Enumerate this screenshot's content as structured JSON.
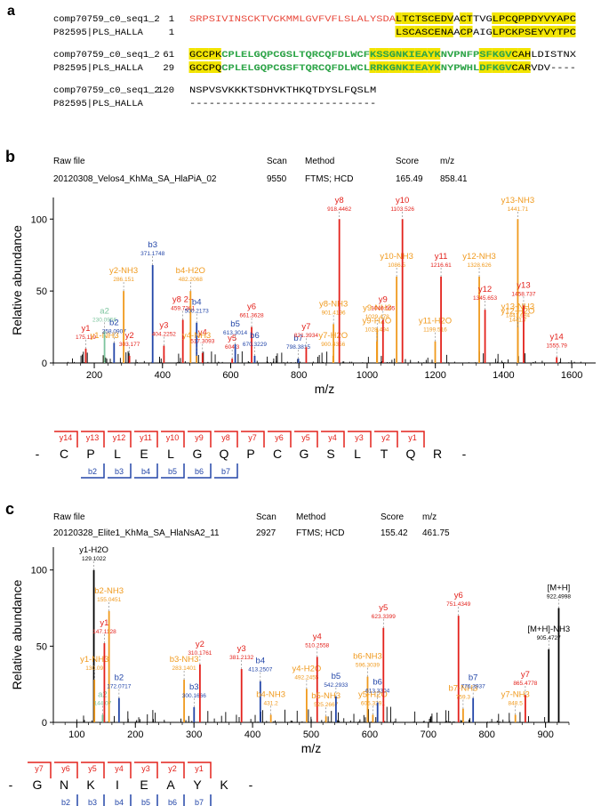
{
  "colors": {
    "red": "#e3221c",
    "orange": "#f09a1e",
    "blue": "#2346a8",
    "green": "#7cc49e",
    "black": "#000000",
    "yellow": "#f2e400",
    "bgreen": "#2fa84a",
    "seqred": "#e8493c"
  },
  "panel_a": {
    "label": "a",
    "rows": [
      {
        "name": "comp70759_c0_seq1_2",
        "start": "1",
        "segs": [
          {
            "t": "SRPSIVINSCKTVCKMMLGVFVFLSLALYSDA",
            "c": "seqred",
            "hl": false
          },
          {
            "t": "LTCTSCEDVACTTVGLPCQPPDYVYAPC",
            "c": "black",
            "hl": "mix"
          }
        ]
      },
      {
        "name": "P82595|PLS_HALLA",
        "start": "1",
        "segs": [
          {
            "t": "                                ",
            "c": "black",
            "hl": false
          },
          {
            "t": "LSCASCENAACPAIGLPCKPSEYVYTPC",
            "c": "black",
            "hl": "mix"
          }
        ]
      },
      {
        "name": "comp70759_c0_seq1_2",
        "start": "61",
        "segs": [
          {
            "t": "GCCPKCPLELGQPCGSLTQRCQFDLWCFKSSGNKIEAYKNVPNFPSFKGVCAHLDISTNX",
            "c": "black",
            "hl": "mix"
          }
        ]
      },
      {
        "name": "P82595|PLS_HALLA",
        "start": "29",
        "segs": [
          {
            "t": "GCCPQCPLELGQPCGSFTQRCQFDLWCLRRKGNKIEAYKNYPWHLDFKGVCARVDV----",
            "c": "black",
            "hl": "mix"
          }
        ]
      },
      {
        "name": "comp70759_c0_seq1_2",
        "start": "120",
        "segs": [
          {
            "t": "NSPVSVKKKTSDHVKTHKQTDYSLFQSLM",
            "c": "black",
            "hl": false
          }
        ]
      },
      {
        "name": "P82595|PLS_HALLA",
        "start": "",
        "segs": [
          {
            "t": "-----------------------------",
            "c": "black",
            "hl": false
          }
        ]
      }
    ]
  },
  "panel_b": {
    "label": "b",
    "header_labels": {
      "raw": "Raw file",
      "scan": "Scan",
      "method": "Method",
      "score": "Score",
      "mz": "m/z"
    },
    "header_values": {
      "raw": "20120308_Velos4_KhMa_SA_HlaPiA_02",
      "scan": "9550",
      "method": "FTMS; HCD",
      "score": "165.49",
      "mz": "858.41"
    },
    "sequence": [
      "C",
      "P",
      "L",
      "E",
      "L",
      "G",
      "Q",
      "P",
      "C",
      "G",
      "S",
      "L",
      "T",
      "Q",
      "R"
    ],
    "y_ions": [
      "y14",
      "y13",
      "y12",
      "y11",
      "y10",
      "y9",
      "y8",
      "y7",
      "y6",
      "y5",
      "y4",
      "y3",
      "y2",
      "y1"
    ],
    "b_ions": [
      "b2",
      "b3",
      "b4",
      "b5",
      "b6",
      "b7"
    ]
  },
  "panel_c": {
    "label": "c",
    "header_labels": {
      "raw": "Raw file",
      "scan": "Scan",
      "method": "Method",
      "score": "Score",
      "mz": "m/z"
    },
    "header_values": {
      "raw": "20120328_Elite1_KhMa_SA_HlaNsA2_11",
      "scan": "2927",
      "method": "FTMS; HCD",
      "score": "155.42",
      "mz": "461.75"
    },
    "sequence": [
      "G",
      "N",
      "K",
      "I",
      "E",
      "A",
      "Y",
      "K"
    ],
    "y_ions": [
      "y7",
      "y6",
      "y5",
      "y4",
      "y3",
      "y2",
      "y1"
    ],
    "b_ions": [
      "b2",
      "b3",
      "b4",
      "b5",
      "b6",
      "b7"
    ]
  },
  "chart_data": [
    {
      "type": "bar",
      "title": "",
      "xlabel": "m/z",
      "ylabel": "Relative abundance",
      "xlim": [
        80,
        1670
      ],
      "ylim": [
        0,
        115
      ],
      "xticks": [
        200,
        400,
        600,
        800,
        1000,
        1200,
        1400,
        1600
      ],
      "yticks": [
        0,
        50,
        100
      ],
      "peaks": [
        {
          "mz": 175.119,
          "int": 10,
          "ion": "y1",
          "val": "175.119",
          "c": "red"
        },
        {
          "mz": 230.0,
          "int": 5,
          "ion": "y1-NH3",
          "val": "",
          "c": "orange"
        },
        {
          "mz": 230.0956,
          "int": 22,
          "ion": "a2",
          "val": "230.0956",
          "c": "green"
        },
        {
          "mz": 258.0907,
          "int": 14,
          "ion": "b2",
          "val": "258.0907",
          "c": "blue"
        },
        {
          "mz": 286.151,
          "int": 50,
          "ion": "y2-NH3",
          "val": "286.151",
          "c": "orange"
        },
        {
          "mz": 303.177,
          "int": 5,
          "ion": "y2",
          "val": "303.177",
          "c": "red"
        },
        {
          "mz": 371.1748,
          "int": 68,
          "ion": "b3",
          "val": "371.1748",
          "c": "blue"
        },
        {
          "mz": 404.2252,
          "int": 12,
          "ion": "y3",
          "val": "404.2252",
          "c": "red"
        },
        {
          "mz": 459.7361,
          "int": 30,
          "ion": "y8 2+",
          "val": "459.7361",
          "c": "red"
        },
        {
          "mz": 482.2068,
          "int": 50,
          "ion": "b4-H2O",
          "val": "482.2068",
          "c": "orange"
        },
        {
          "mz": 500.2173,
          "int": 28,
          "ion": "b4",
          "val": "500.2173",
          "c": "blue"
        },
        {
          "mz": 517.3093,
          "int": 7,
          "ion": "y4",
          "val": "517.3093",
          "c": "red"
        },
        {
          "mz": 500.0,
          "int": 5,
          "ion": "y4-NH3",
          "val": "",
          "c": "orange"
        },
        {
          "mz": 604.3,
          "int": 3,
          "ion": "y5",
          "val": "604.3",
          "c": "red"
        },
        {
          "mz": 613.3014,
          "int": 13,
          "ion": "b5",
          "val": "613.3014",
          "c": "blue"
        },
        {
          "mz": 661.3628,
          "int": 25,
          "ion": "y6",
          "val": "661.3628",
          "c": "red"
        },
        {
          "mz": 670.3229,
          "int": 5,
          "ion": "b6",
          "val": "670.3229",
          "c": "blue"
        },
        {
          "mz": 798.3815,
          "int": 3,
          "ion": "b7",
          "val": "798.3815",
          "c": "blue"
        },
        {
          "mz": 821.3934,
          "int": 11,
          "ion": "y7",
          "val": "821.3934",
          "c": "red"
        },
        {
          "mz": 900.4356,
          "int": 5,
          "ion": "y7-H2O",
          "val": "900.4356",
          "c": "orange"
        },
        {
          "mz": 901.4196,
          "int": 27,
          "ion": "y8-NH3",
          "val": "901.4196",
          "c": "orange"
        },
        {
          "mz": 918.4462,
          "int": 100,
          "ion": "y8",
          "val": "918.4462",
          "c": "red"
        },
        {
          "mz": 1029.478,
          "int": 24,
          "ion": "y9-NH3",
          "val": "1029.478",
          "c": "orange"
        },
        {
          "mz": 1028.494,
          "int": 15,
          "ion": "y9-H2O",
          "val": "1028.494",
          "c": "orange"
        },
        {
          "mz": 1046.505,
          "int": 30,
          "ion": "y9",
          "val": "1046.505",
          "c": "red"
        },
        {
          "mz": 1086.5,
          "int": 60,
          "ion": "y10-NH3",
          "val": "1086.5",
          "c": "orange"
        },
        {
          "mz": 1103.526,
          "int": 100,
          "ion": "y10",
          "val": "1103.526",
          "c": "red"
        },
        {
          "mz": 1199.516,
          "int": 15,
          "ion": "y11-H2O",
          "val": "1199.516",
          "c": "orange"
        },
        {
          "mz": 1216.61,
          "int": 60,
          "ion": "y11",
          "val": "1216.61",
          "c": "red"
        },
        {
          "mz": 1328.626,
          "int": 60,
          "ion": "y12-NH3",
          "val": "1328.626",
          "c": "orange"
        },
        {
          "mz": 1345.653,
          "int": 37,
          "ion": "y12",
          "val": "1345.653",
          "c": "red"
        },
        {
          "mz": 1441.71,
          "int": 100,
          "ion": "y13-NH3",
          "val": "1441.71",
          "c": "orange"
        },
        {
          "mz": 1441.7,
          "int": 22,
          "ion": "y12-H2O",
          "val": "1441.7",
          "c": "orange"
        },
        {
          "mz": 1441.684,
          "int": 25,
          "ion": "y13-NH3",
          "val": "1441.684",
          "c": "orange"
        },
        {
          "mz": 1458.737,
          "int": 40,
          "ion": "y13",
          "val": "1458.737",
          "c": "red"
        },
        {
          "mz": 1555.79,
          "int": 4,
          "ion": "y14",
          "val": "1555.79",
          "c": "red"
        }
      ]
    },
    {
      "type": "bar",
      "title": "",
      "xlabel": "m/z",
      "ylabel": "Relative abundance",
      "xlim": [
        60,
        940
      ],
      "ylim": [
        0,
        115
      ],
      "xticks": [
        100,
        200,
        300,
        400,
        500,
        600,
        700,
        800,
        900
      ],
      "yticks": [
        0,
        50,
        100
      ],
      "peaks": [
        {
          "mz": 129.1022,
          "int": 100,
          "ion": "y1-H2O",
          "val": "129.1022",
          "c": "black"
        },
        {
          "mz": 130.09,
          "int": 28,
          "ion": "y1-NH3",
          "val": "130.09",
          "c": "orange"
        },
        {
          "mz": 144.07,
          "int": 5,
          "ion": "a2",
          "val": "144.07",
          "c": "green"
        },
        {
          "mz": 147.1128,
          "int": 52,
          "ion": "y1",
          "val": "147.1128",
          "c": "red"
        },
        {
          "mz": 155.0451,
          "int": 73,
          "ion": "b2-NH3",
          "val": "155.0451",
          "c": "orange"
        },
        {
          "mz": 172.0717,
          "int": 16,
          "ion": "b2",
          "val": "172.0717",
          "c": "blue"
        },
        {
          "mz": 283.1401,
          "int": 28,
          "ion": "b3-NH3",
          "val": "283.1401",
          "c": "orange"
        },
        {
          "mz": 300.1666,
          "int": 10,
          "ion": "b3",
          "val": "300.1666",
          "c": "blue"
        },
        {
          "mz": 310.1761,
          "int": 38,
          "ion": "y2",
          "val": "310.1761",
          "c": "red"
        },
        {
          "mz": 381.2132,
          "int": 35,
          "ion": "y3",
          "val": "381.2132",
          "c": "red"
        },
        {
          "mz": 413.2507,
          "int": 27,
          "ion": "b4",
          "val": "413.2507",
          "c": "blue"
        },
        {
          "mz": 431.2,
          "int": 5,
          "ion": "b4-NH3",
          "val": "431.2",
          "c": "orange"
        },
        {
          "mz": 492.2455,
          "int": 22,
          "ion": "y4-H2O",
          "val": "492.2455",
          "c": "orange"
        },
        {
          "mz": 510.2558,
          "int": 43,
          "ion": "y4",
          "val": "510.2558",
          "c": "red"
        },
        {
          "mz": 525.2667,
          "int": 4,
          "ion": "b5-NH3",
          "val": "525.2667",
          "c": "orange"
        },
        {
          "mz": 542.2933,
          "int": 17,
          "ion": "b5",
          "val": "542.2933",
          "c": "blue"
        },
        {
          "mz": 596.3039,
          "int": 30,
          "ion": "b6-NH3",
          "val": "596.3039",
          "c": "orange"
        },
        {
          "mz": 605.3291,
          "int": 5,
          "ion": "y5-H2O",
          "val": "605.3291",
          "c": "orange"
        },
        {
          "mz": 613.3304,
          "int": 13,
          "ion": "b6",
          "val": "613.3304",
          "c": "blue"
        },
        {
          "mz": 623.3399,
          "int": 62,
          "ion": "y5",
          "val": "623.3399",
          "c": "red"
        },
        {
          "mz": 751.4349,
          "int": 70,
          "ion": "y6",
          "val": "751.4349",
          "c": "red"
        },
        {
          "mz": 759.3,
          "int": 9,
          "ion": "b7-NH3",
          "val": "759.3",
          "c": "orange"
        },
        {
          "mz": 776.3937,
          "int": 16,
          "ion": "b7",
          "val": "776.3937",
          "c": "blue"
        },
        {
          "mz": 848.5,
          "int": 5,
          "ion": "y7-NH3",
          "val": "848.5",
          "c": "orange"
        },
        {
          "mz": 865.4778,
          "int": 18,
          "ion": "y7",
          "val": "865.4778",
          "c": "red"
        },
        {
          "mz": 905.4727,
          "int": 48,
          "ion": "[M+H]-NH3",
          "val": "905.4727",
          "c": "black"
        },
        {
          "mz": 922.4998,
          "int": 75,
          "ion": "[M+H]",
          "val": "922.4998",
          "c": "black"
        }
      ]
    }
  ]
}
